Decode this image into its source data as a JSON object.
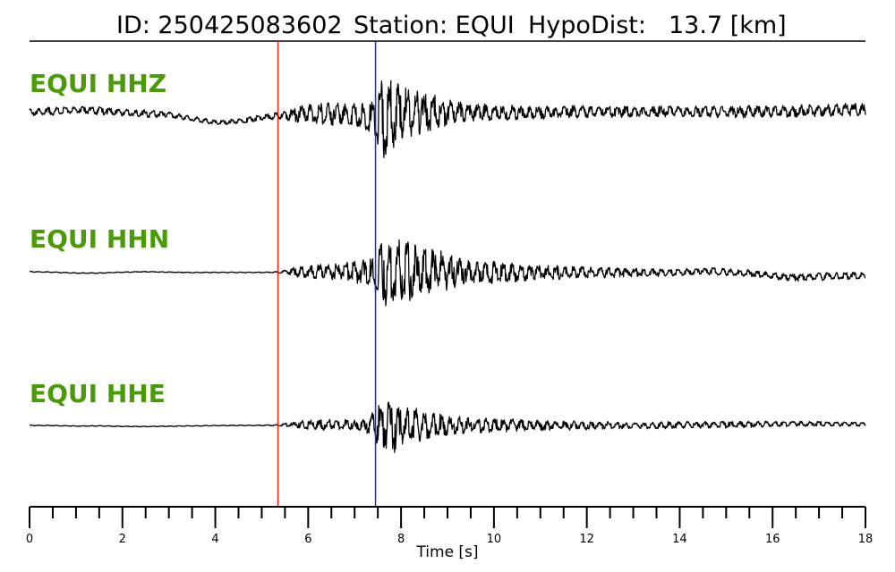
{
  "title": {
    "id_text": "ID: 250425083602",
    "station_text": "Station: EQUI",
    "hypodist_label": "HypoDist:",
    "hypodist_value": "13.7 [km]"
  },
  "colors": {
    "channel_label": "#4a9a0a",
    "trace": "#000000",
    "p_pick": "#e8231d",
    "s_pick": "#2424d6",
    "axis": "#000000"
  },
  "chart_data": {
    "type": "line",
    "xlabel": "Time [s]",
    "xlim": [
      0,
      18
    ],
    "x_ticks": [
      0,
      2,
      4,
      6,
      8,
      10,
      12,
      14,
      16,
      18
    ],
    "minor_tick_step": 0.5,
    "grid": false,
    "picks": [
      {
        "phase": "P",
        "time": 5.35,
        "color": "#e8231d"
      },
      {
        "phase": "S",
        "time": 7.45,
        "color": "#2424d6"
      }
    ],
    "series": [
      {
        "name": "EQUI HHZ",
        "times": [
          0,
          0.5,
          1,
          1.5,
          2,
          2.5,
          3,
          3.5,
          4,
          4.5,
          5,
          5.35,
          5.8,
          6.3,
          6.8,
          7.2,
          7.45,
          7.6,
          7.75,
          7.9,
          8.2,
          8.6,
          9,
          9.5,
          10,
          11,
          12,
          13,
          14,
          15,
          16,
          17,
          17.6,
          18
        ],
        "envelope": [
          0.08,
          0.1,
          0.07,
          0.1,
          0.08,
          0.1,
          0.07,
          0.06,
          0.06,
          0.06,
          0.07,
          0.08,
          0.2,
          0.25,
          0.3,
          0.3,
          0.55,
          1.0,
          0.9,
          0.75,
          0.55,
          0.45,
          0.3,
          0.22,
          0.18,
          0.15,
          0.14,
          0.13,
          0.13,
          0.14,
          0.14,
          0.15,
          0.15,
          0.15
        ],
        "baseline": [
          0,
          0.08,
          0.15,
          0.1,
          0,
          -0.05,
          -0.1,
          -0.3,
          -0.5,
          -0.45,
          -0.25,
          -0.15,
          -0.1,
          -0.05,
          -0.05,
          -0.15,
          -0.3,
          -0.25,
          -0.15,
          -0.05,
          0,
          0,
          0,
          0,
          0,
          0,
          0.05,
          0.05,
          0.05,
          0.05,
          0.05,
          0.1,
          0.15,
          0.15
        ]
      },
      {
        "name": "EQUI HHN",
        "times": [
          0,
          0.5,
          1,
          1.5,
          2,
          2.5,
          3,
          3.5,
          4,
          4.5,
          5,
          5.35,
          5.8,
          6.3,
          6.8,
          7.2,
          7.45,
          7.6,
          7.75,
          7.9,
          8.2,
          8.6,
          9,
          9.5,
          10,
          11,
          12,
          13,
          14,
          14.5,
          15,
          15.5,
          16,
          16.5,
          17,
          17.5,
          18
        ],
        "envelope": [
          0.01,
          0.01,
          0.01,
          0.01,
          0.01,
          0.01,
          0.01,
          0.01,
          0.01,
          0.01,
          0.01,
          0.02,
          0.15,
          0.2,
          0.25,
          0.35,
          0.55,
          0.9,
          1.0,
          0.85,
          0.8,
          0.7,
          0.5,
          0.35,
          0.3,
          0.2,
          0.16,
          0.12,
          0.1,
          0.1,
          0.1,
          0.1,
          0.1,
          0.1,
          0.1,
          0.1,
          0.1
        ],
        "baseline": [
          0,
          -0.03,
          -0.08,
          -0.08,
          -0.03,
          0,
          -0.03,
          -0.05,
          -0.04,
          -0.04,
          -0.04,
          -0.03,
          0,
          0,
          0,
          0,
          0,
          0,
          0,
          0,
          0,
          0,
          0,
          -0.03,
          -0.05,
          -0.05,
          -0.05,
          -0.05,
          -0.05,
          0.05,
          -0.02,
          -0.1,
          -0.25,
          -0.35,
          -0.3,
          -0.25,
          -0.25
        ]
      },
      {
        "name": "EQUI HHE",
        "times": [
          0,
          0.5,
          1,
          1.5,
          2,
          2.5,
          3,
          3.5,
          4,
          4.5,
          5,
          5.35,
          5.8,
          6.3,
          6.8,
          7.2,
          7.45,
          7.6,
          7.75,
          7.9,
          8.2,
          8.6,
          9,
          9.5,
          10,
          11,
          12,
          13,
          14,
          15,
          16,
          17,
          18
        ],
        "envelope": [
          0.01,
          0.01,
          0.01,
          0.01,
          0.01,
          0.01,
          0.01,
          0.01,
          0.01,
          0.01,
          0.01,
          0.02,
          0.12,
          0.15,
          0.15,
          0.15,
          0.5,
          0.7,
          1.0,
          0.75,
          0.5,
          0.4,
          0.3,
          0.22,
          0.2,
          0.15,
          0.12,
          0.1,
          0.1,
          0.1,
          0.08,
          0.07,
          0.06
        ],
        "baseline": [
          0,
          -0.01,
          -0.04,
          -0.03,
          -0.06,
          -0.07,
          -0.05,
          -0.03,
          -0.01,
          0,
          0,
          0.02,
          0.04,
          0.04,
          0.04,
          0.04,
          0.03,
          0,
          0,
          0,
          0,
          0,
          0,
          0,
          0,
          0,
          0,
          0,
          0.02,
          0.05,
          0.08,
          0.1,
          0.08
        ]
      }
    ]
  }
}
